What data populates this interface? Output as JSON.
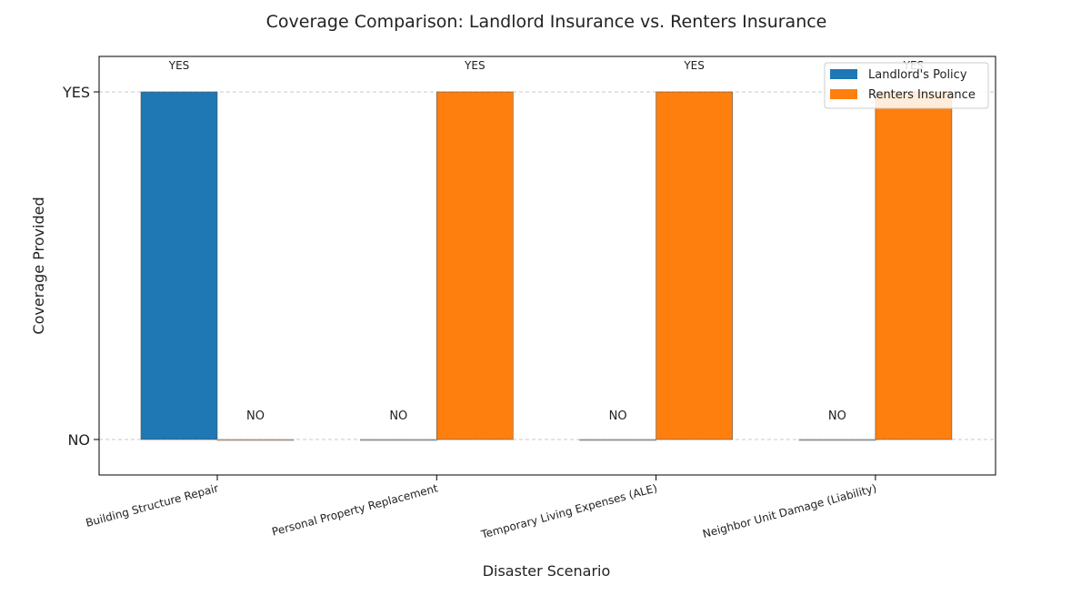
{
  "chart_data": {
    "type": "bar",
    "title": "Coverage Comparison: Landlord Insurance vs. Renters Insurance",
    "xlabel": "Disaster Scenario",
    "ylabel": "Coverage Provided",
    "ylim": [
      -0.1,
      1.1
    ],
    "yticks": [
      {
        "value": 0,
        "label": "NO"
      },
      {
        "value": 1,
        "label": "YES"
      }
    ],
    "categories": [
      "Building Structure Repair",
      "Personal Property Replacement",
      "Temporary Living Expenses (ALE)",
      "Neighbor Unit Damage (Liability)"
    ],
    "series": [
      {
        "name": "Landlord's Policy",
        "color": "#1f77b4",
        "values": [
          1,
          0,
          0,
          0
        ],
        "labels": [
          "YES",
          "NO",
          "NO",
          "NO"
        ]
      },
      {
        "name": "Renters Insurance",
        "color": "#ff7f0e",
        "values": [
          0,
          1,
          1,
          1
        ],
        "labels": [
          "NO",
          "YES",
          "YES",
          "YES"
        ]
      }
    ],
    "grid": "y-dashed",
    "legend_position": "top-right"
  }
}
